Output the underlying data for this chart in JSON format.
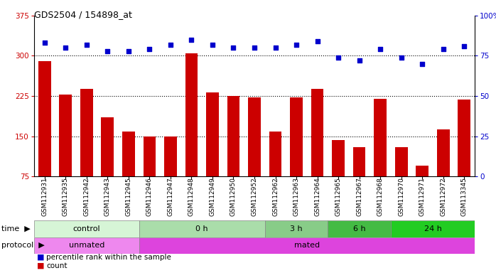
{
  "title": "GDS2504 / 154898_at",
  "samples": [
    "GSM112931",
    "GSM112935",
    "GSM112942",
    "GSM112943",
    "GSM112945",
    "GSM112946",
    "GSM112947",
    "GSM112948",
    "GSM112949",
    "GSM112950",
    "GSM112952",
    "GSM112962",
    "GSM112963",
    "GSM112964",
    "GSM112965",
    "GSM112967",
    "GSM112968",
    "GSM112970",
    "GSM112971",
    "GSM112972",
    "GSM113345"
  ],
  "bar_values": [
    290,
    228,
    238,
    185,
    158,
    149,
    149,
    305,
    232,
    225,
    222,
    158,
    222,
    238,
    143,
    130,
    220,
    130,
    95,
    163,
    218
  ],
  "dot_values": [
    83,
    80,
    82,
    78,
    78,
    79,
    82,
    85,
    82,
    80,
    80,
    80,
    82,
    84,
    74,
    72,
    79,
    74,
    70,
    79,
    81
  ],
  "bar_color": "#cc0000",
  "dot_color": "#0000cc",
  "ylim_left": [
    75,
    375
  ],
  "ylim_right": [
    0,
    100
  ],
  "yticks_left": [
    75,
    150,
    225,
    300,
    375
  ],
  "yticks_right": [
    0,
    25,
    50,
    75,
    100
  ],
  "ytick_labels_right": [
    "0",
    "25",
    "50",
    "75",
    "100%"
  ],
  "grid_values": [
    150,
    225,
    300
  ],
  "time_groups": [
    {
      "label": "control",
      "start": 0,
      "end": 5,
      "color": "#d6f5d6"
    },
    {
      "label": "0 h",
      "start": 5,
      "end": 11,
      "color": "#aaddaa"
    },
    {
      "label": "3 h",
      "start": 11,
      "end": 14,
      "color": "#88cc88"
    },
    {
      "label": "6 h",
      "start": 14,
      "end": 17,
      "color": "#44bb44"
    },
    {
      "label": "24 h",
      "start": 17,
      "end": 21,
      "color": "#22cc22"
    }
  ],
  "protocol_groups": [
    {
      "label": "unmated",
      "start": 0,
      "end": 5,
      "color": "#ee88ee"
    },
    {
      "label": "mated",
      "start": 5,
      "end": 21,
      "color": "#dd44dd"
    }
  ],
  "time_label": "time",
  "protocol_label": "protocol",
  "legend_bar": "count",
  "legend_dot": "percentile rank within the sample",
  "bg_color": "#ffffff",
  "tick_label_color_left": "#cc0000",
  "tick_label_color_right": "#0000cc"
}
